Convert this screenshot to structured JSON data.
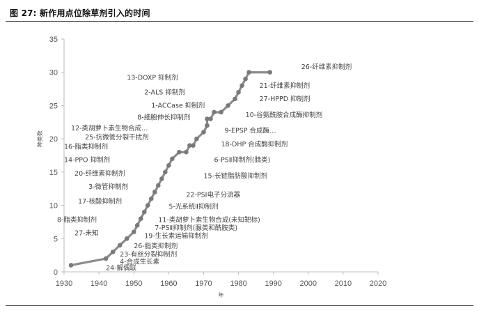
{
  "figure": {
    "caption": "图 27: 新作用点位除草剂引入的时间"
  },
  "chart_data": {
    "type": "line",
    "xlabel": "年",
    "ylabel": "种类数",
    "xlim": [
      1930,
      2020
    ],
    "ylim": [
      0,
      35
    ],
    "xticks": [
      1930,
      1940,
      1950,
      1960,
      1970,
      1980,
      1990,
      2000,
      2010,
      2020
    ],
    "yticks": [
      0,
      5,
      10,
      15,
      20,
      25,
      30,
      35
    ],
    "grid": false,
    "series": [
      {
        "x": [
          1932,
          1942,
          1944,
          1946,
          1948,
          1950,
          1951,
          1952,
          1953,
          1954,
          1955,
          1956,
          1957,
          1958,
          1959,
          1960,
          1961,
          1963,
          1965,
          1966,
          1967,
          1968,
          1970,
          1971,
          1971,
          1972,
          1973,
          1975,
          1977,
          1979,
          1980,
          1981,
          1982,
          1983,
          1989
        ],
        "y": [
          1,
          2,
          3,
          4,
          5,
          6,
          7,
          8,
          9,
          10,
          11,
          12,
          13,
          14,
          15,
          16,
          17,
          18,
          18,
          19,
          19,
          20,
          21,
          22,
          23,
          23,
          24,
          24,
          25,
          26,
          27,
          28,
          29,
          30,
          30
        ]
      }
    ],
    "annotations": [
      {
        "text": "24-解偶联",
        "x": 1942,
        "y": 0.6
      },
      {
        "text": "4-合成生长素",
        "x": 1946,
        "y": 1.5
      },
      {
        "text": "23-有丝分裂抑制剂",
        "x": 1946,
        "y": 2.6
      },
      {
        "text": "26-脂类抑制剂",
        "x": 1950,
        "y": 3.9
      },
      {
        "text": "19-生长素运输抑制剂",
        "x": 1953,
        "y": 5.4
      },
      {
        "text": "7-PSⅡ抑制剂(脲类和酰胺类)",
        "x": 1956,
        "y": 6.6
      },
      {
        "text": "11-类胡萝卜素生物合成(未知靶标)",
        "x": 1957,
        "y": 7.8
      },
      {
        "text": "27-未知",
        "x": 1933,
        "y": 5.8
      },
      {
        "text": "8-脂类抑制剂",
        "x": 1928,
        "y": 7.8
      },
      {
        "text": "5-光系统Ⅱ抑制剂",
        "x": 1960,
        "y": 9.8
      },
      {
        "text": "17-核酸抑制剂",
        "x": 1934,
        "y": 10.6
      },
      {
        "text": "22-PSⅠ电子分流器",
        "x": 1965,
        "y": 11.6
      },
      {
        "text": "3-微管抑制剂",
        "x": 1937,
        "y": 12.8
      },
      {
        "text": "15-长链脂肪酸抑制剂",
        "x": 1970,
        "y": 14.4
      },
      {
        "text": "20-纤维素抑制剂",
        "x": 1933,
        "y": 14.8
      },
      {
        "text": "6-PSⅡ抑制剂(腈类)",
        "x": 1973,
        "y": 16.8
      },
      {
        "text": "14-PPO 抑制剂",
        "x": 1930,
        "y": 16.8
      },
      {
        "text": "16-脂类抑制剂",
        "x": 1930,
        "y": 18.8
      },
      {
        "text": "18-DHP 合成酶抑制剂",
        "x": 1975,
        "y": 19.2
      },
      {
        "text": "25-抗微管分裂干扰剂",
        "x": 1936,
        "y": 20.2
      },
      {
        "text": "12-类胡萝卜素生物合成…",
        "x": 1932,
        "y": 21.6
      },
      {
        "text": "9-EPSP 合成酶…",
        "x": 1976,
        "y": 21.2
      },
      {
        "text": "8-细胞伸长抑制剂",
        "x": 1951,
        "y": 23.2
      },
      {
        "text": "10-谷氨酰胺合成酶抑制剂",
        "x": 1982,
        "y": 23.6
      },
      {
        "text": "1-ACCase 抑制剂",
        "x": 1955,
        "y": 25.0
      },
      {
        "text": "27-HPPD 抑制剂",
        "x": 1986,
        "y": 26.0
      },
      {
        "text": "2-ALS 抑制剂",
        "x": 1953,
        "y": 27.0
      },
      {
        "text": "21-纤维素抑制剂",
        "x": 1986,
        "y": 28.0
      },
      {
        "text": "13-DOXP 抑制剂",
        "x": 1948,
        "y": 29.2
      },
      {
        "text": "26-纤维素抑制剂",
        "x": 1998,
        "y": 30.8
      }
    ]
  }
}
